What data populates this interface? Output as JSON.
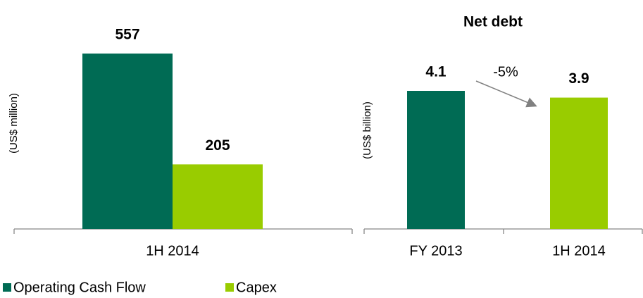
{
  "chart_data": [
    {
      "type": "bar",
      "y_label": "(US$ million)",
      "categories": [
        "1H 2014"
      ],
      "series": [
        {
          "name": "Operating Cash Flow",
          "color": "#006b54",
          "values": [
            557
          ]
        },
        {
          "name": "Capex",
          "color": "#99cc00",
          "values": [
            205
          ]
        }
      ],
      "legend": "bottom"
    },
    {
      "type": "bar",
      "title": "Net debt",
      "y_label": "(US$ billion)",
      "categories": [
        "FY 2013",
        "1H 2014"
      ],
      "values": [
        4.1,
        3.9
      ],
      "colors": [
        "#006b54",
        "#99cc00"
      ],
      "annotation": "-5%"
    }
  ]
}
